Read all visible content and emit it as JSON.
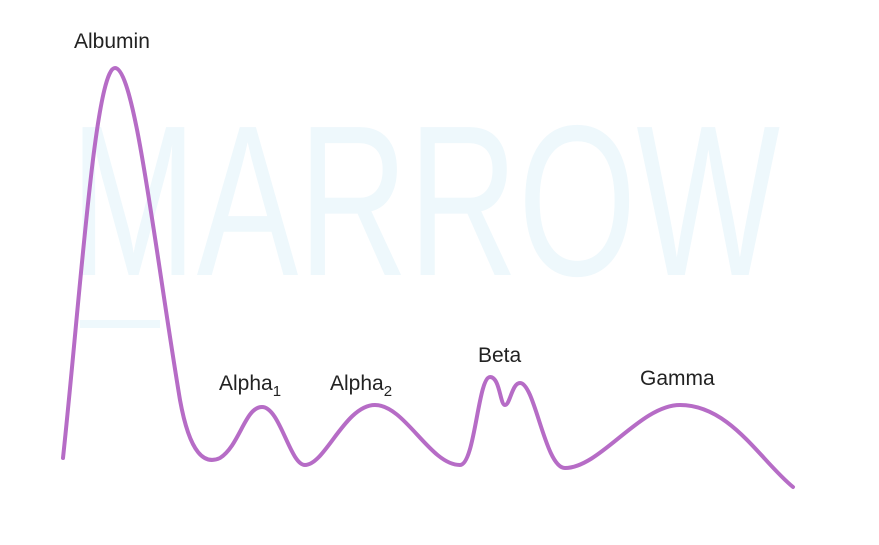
{
  "watermark": "MARROW",
  "labels": {
    "albumin": "Albumin",
    "alpha1": {
      "text": "Alpha",
      "subscript": "1"
    },
    "alpha2": {
      "text": "Alpha",
      "subscript": "2"
    },
    "beta": "Beta",
    "gamma": "Gamma"
  }
}
